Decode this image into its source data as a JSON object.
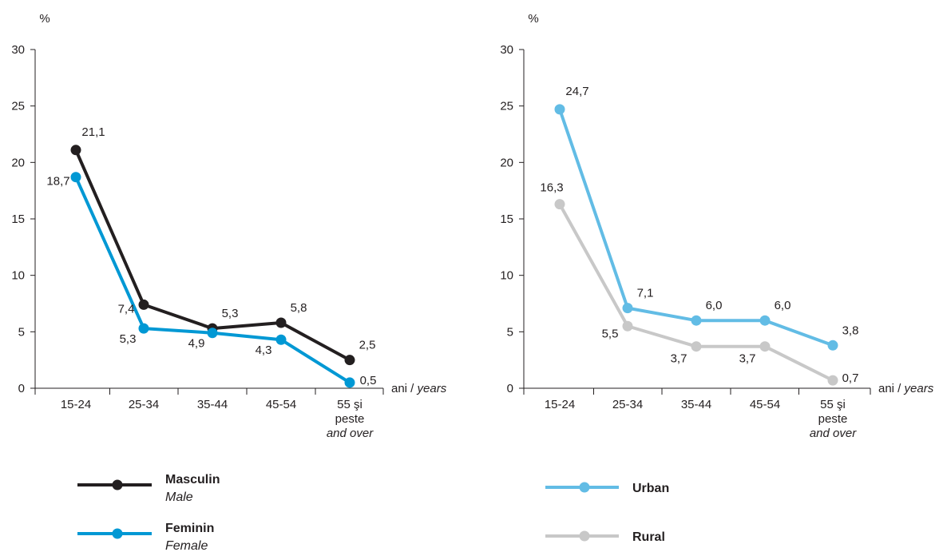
{
  "chart_data": [
    {
      "type": "line",
      "ylabel": "%",
      "xlabel_parts": [
        "ani / ",
        "years"
      ],
      "ylim": [
        0,
        30
      ],
      "yticks": [
        0,
        5,
        10,
        15,
        20,
        25,
        30
      ],
      "categories": [
        [
          "15-24"
        ],
        [
          "25-34"
        ],
        [
          "35-44"
        ],
        [
          "45-54"
        ],
        [
          "55 şi",
          "peste",
          "and over"
        ]
      ],
      "series": [
        {
          "name": "Masculin",
          "name_en": "Male",
          "color": "#231f20",
          "values": [
            21.1,
            7.4,
            5.3,
            5.8,
            2.5
          ],
          "labels": [
            "21,1",
            "7,4",
            "5,3",
            "5,8",
            "2,5"
          ]
        },
        {
          "name": "Feminin",
          "name_en": "Female",
          "color": "#0098d4",
          "values": [
            18.7,
            5.3,
            4.9,
            4.3,
            0.5
          ],
          "labels": [
            "18,7",
            "5,3",
            "4,9",
            "4,3",
            "0,5"
          ]
        }
      ],
      "legend_position": "bottom"
    },
    {
      "type": "line",
      "ylabel": "%",
      "xlabel_parts": [
        "ani / ",
        "years"
      ],
      "ylim": [
        0,
        30
      ],
      "yticks": [
        0,
        5,
        10,
        15,
        20,
        25,
        30
      ],
      "categories": [
        [
          "15-24"
        ],
        [
          "25-34"
        ],
        [
          "35-44"
        ],
        [
          "45-54"
        ],
        [
          "55 şi",
          "peste",
          "and over"
        ]
      ],
      "series": [
        {
          "name": "Urban",
          "name_en": "",
          "color": "#62bce5",
          "values": [
            24.7,
            7.1,
            6.0,
            6.0,
            3.8
          ],
          "labels": [
            "24,7",
            "7,1",
            "6,0",
            "6,0",
            "3,8"
          ]
        },
        {
          "name": "Rural",
          "name_en": "",
          "color": "#c8c8c8",
          "values": [
            16.3,
            5.5,
            3.7,
            3.7,
            0.7
          ],
          "labels": [
            "16,3",
            "5,5",
            "3,7",
            "3,7",
            "0,7"
          ]
        }
      ],
      "legend_position": "bottom"
    }
  ]
}
